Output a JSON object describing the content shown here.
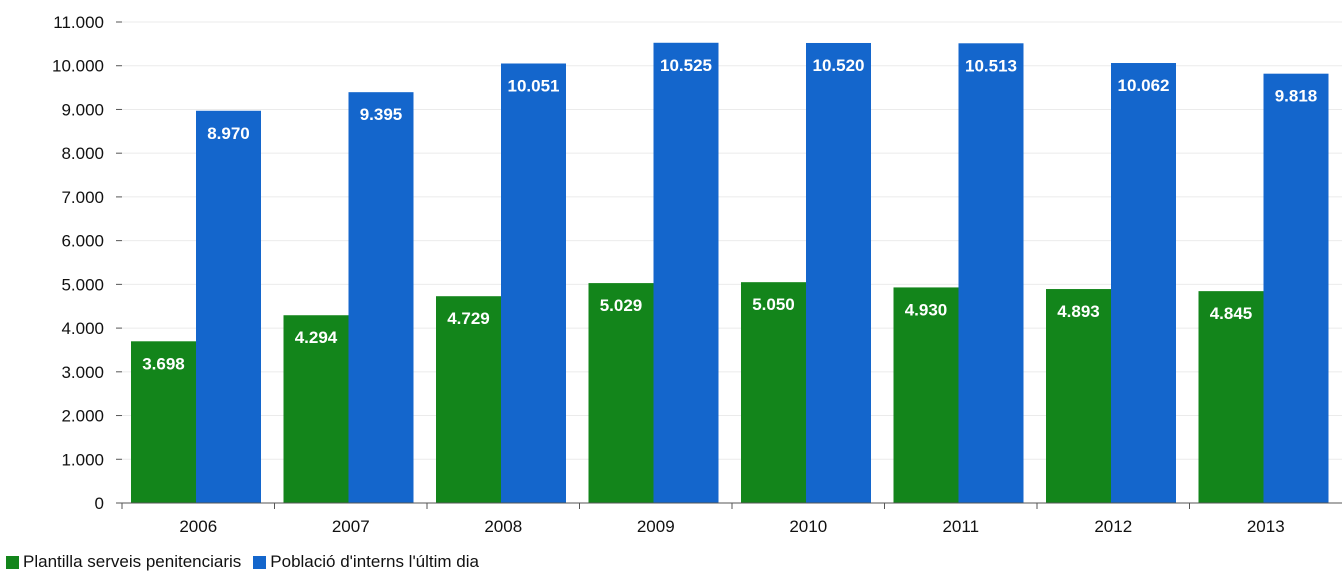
{
  "chart_data": {
    "type": "bar",
    "categories": [
      "2006",
      "2007",
      "2008",
      "2009",
      "2010",
      "2011",
      "2012",
      "2013"
    ],
    "series": [
      {
        "name": "Plantilla serveis penitenciaris",
        "color": "#13851b",
        "values": [
          3698,
          4294,
          4729,
          5029,
          5050,
          4930,
          4893,
          4845
        ],
        "labels": [
          "3.698",
          "4.294",
          "4.729",
          "5.029",
          "5.050",
          "4.930",
          "4.893",
          "4.845"
        ]
      },
      {
        "name": "Població d'interns l'últim dia",
        "color": "#1466cc",
        "values": [
          8970,
          9395,
          10051,
          10525,
          10520,
          10513,
          10062,
          9818
        ],
        "labels": [
          "8.970",
          "9.395",
          "10.051",
          "10.525",
          "10.520",
          "10.513",
          "10.062",
          "9.818"
        ]
      }
    ],
    "yticks": [
      0,
      1000,
      2000,
      3000,
      4000,
      5000,
      6000,
      7000,
      8000,
      9000,
      10000,
      11000
    ],
    "ytick_labels": [
      "0",
      "1.000",
      "2.000",
      "3.000",
      "4.000",
      "5.000",
      "6.000",
      "7.000",
      "8.000",
      "9.000",
      "10.000",
      "11.000"
    ],
    "ylim": [
      0,
      11000
    ],
    "grid": true,
    "legend_position": "bottom-left"
  }
}
